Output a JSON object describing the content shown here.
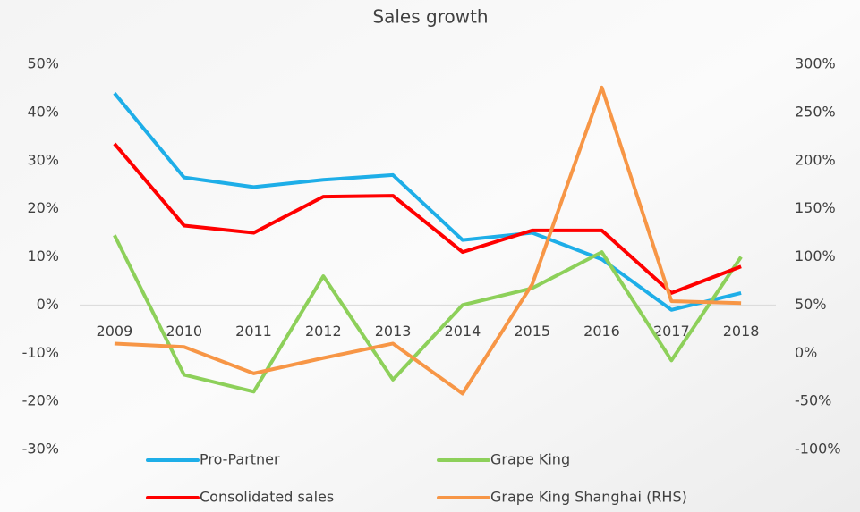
{
  "chart_data": {
    "type": "line",
    "title": "Sales growth",
    "categories": [
      "2009",
      "2010",
      "2011",
      "2012",
      "2013",
      "2014",
      "2015",
      "2016",
      "2017",
      "2018"
    ],
    "series": [
      {
        "name": "Pro-Partner",
        "color": "#1eaee8",
        "values": [
          44,
          26.5,
          24.5,
          26,
          27,
          13.5,
          15,
          9.5,
          -1,
          2.5
        ]
      },
      {
        "name": "Grape King",
        "color": "#8dd05a",
        "values": [
          14.5,
          -14.5,
          -18,
          6,
          -15.5,
          0,
          3.5,
          11,
          -11.5,
          10
        ]
      },
      {
        "name": "Consolidated sales",
        "color": "#ff0000",
        "values": [
          33.5,
          16.5,
          15,
          22.5,
          22.7,
          11,
          15.5,
          15.5,
          2.5,
          8
        ]
      },
      {
        "name": "Grape King Shanghai (RHS)",
        "color": "#f79646",
        "axis": "y2",
        "values": [
          10,
          6.5,
          -21,
          -5,
          10,
          -42,
          71.5,
          276,
          54,
          52
        ]
      }
    ],
    "ylim": [
      -30,
      50
    ],
    "yticks": [
      {
        "value": -30,
        "label": "-30%"
      },
      {
        "value": -20,
        "label": "-20%"
      },
      {
        "value": -10,
        "label": "-10%"
      },
      {
        "value": 0,
        "label": "0%"
      },
      {
        "value": 10,
        "label": "10%"
      },
      {
        "value": 20,
        "label": "20%"
      },
      {
        "value": 30,
        "label": "30%"
      },
      {
        "value": 40,
        "label": "40%"
      },
      {
        "value": 50,
        "label": "50%"
      }
    ],
    "y2lim": [
      -100,
      300
    ],
    "y2ticks": [
      {
        "value": -100,
        "label": "-100%"
      },
      {
        "value": -50,
        "label": "-50%"
      },
      {
        "value": 0,
        "label": "0%"
      },
      {
        "value": 50,
        "label": "50%"
      },
      {
        "value": 100,
        "label": "100%"
      },
      {
        "value": 150,
        "label": "150%"
      },
      {
        "value": 200,
        "label": "200%"
      },
      {
        "value": 250,
        "label": "250%"
      },
      {
        "value": 300,
        "label": "300%"
      }
    ],
    "legend": "bottom"
  }
}
